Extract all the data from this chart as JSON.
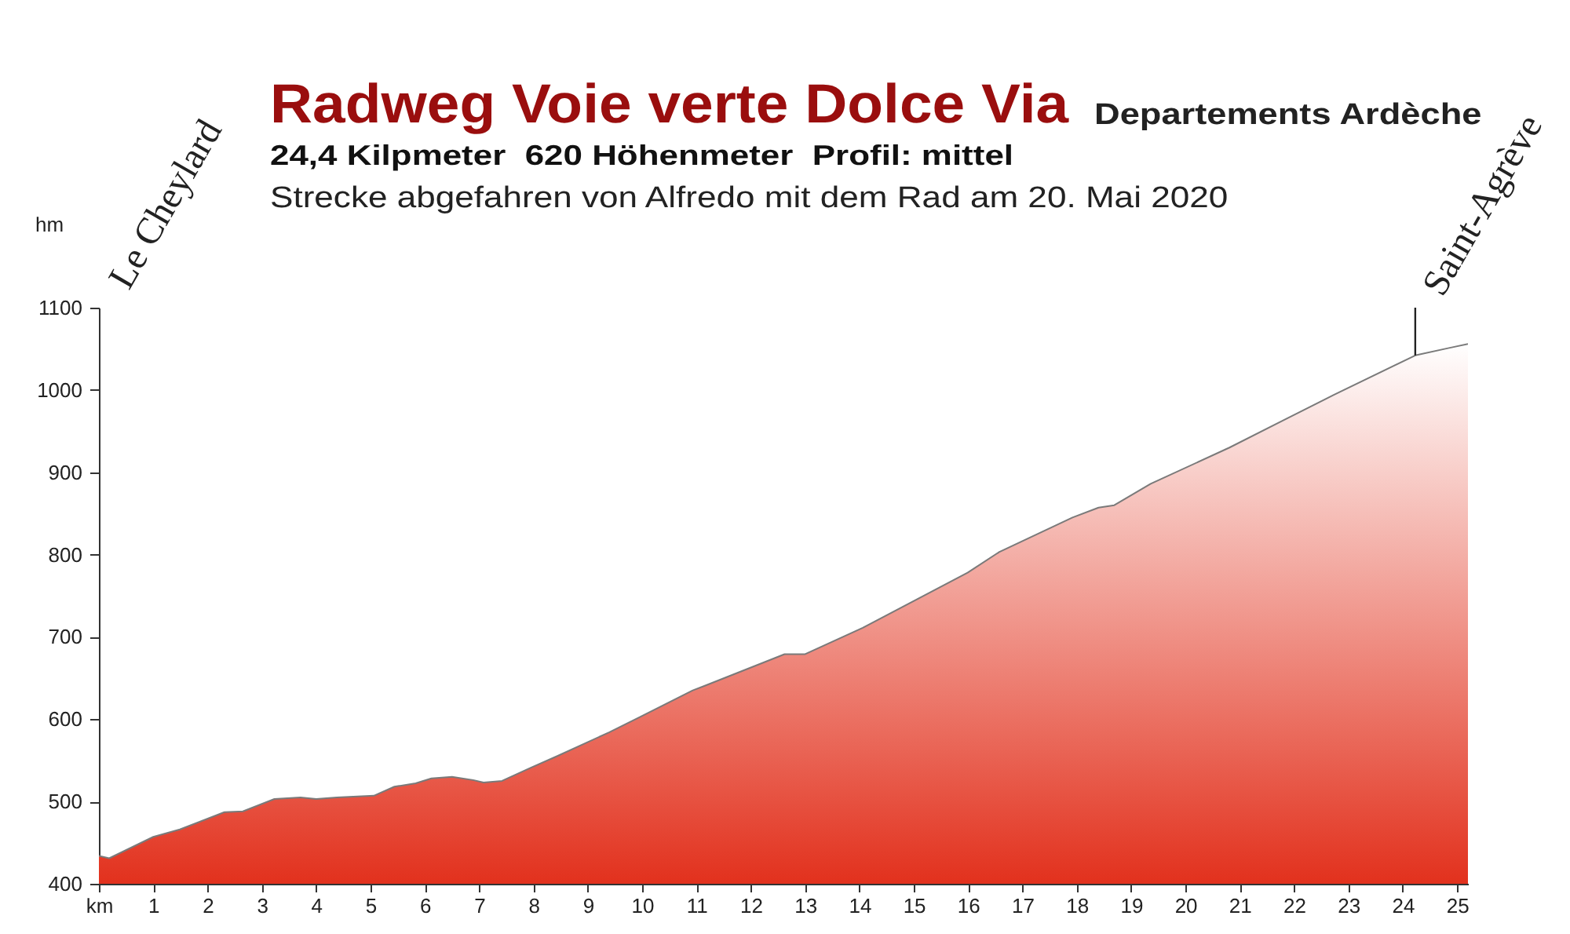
{
  "chart_data": {
    "type": "area",
    "title": "Radweg Voie verte Dolce Via",
    "subtitle": "24,4 Kilpmeter  620 Höhenmeter  Profil: mittel",
    "ylabel": "hm",
    "annotations": [
      "Departements Ardèche",
      "Strecke abgefahren von Alfredo mit dem Rad am 20. Mai 2020",
      "Le Cheylard",
      {
        "text": "Saint-Agrève",
        "x": 24.23,
        "y": 1042
      }
    ],
    "x": [
      0,
      0.19,
      1.0,
      1.49,
      2.31,
      2.65,
      3.23,
      3.71,
      4.0,
      4.38,
      5.06,
      5.44,
      5.83,
      6.12,
      6.5,
      6.89,
      7.08,
      7.42,
      7.95,
      8.43,
      9.39,
      9.97,
      10.93,
      11.17,
      12.62,
      13.0,
      14.06,
      15.99,
      16.57,
      17.92,
      18.4,
      18.69,
      19.36,
      20.81,
      21.77,
      22.73,
      24.23,
      24.85,
      25.2
    ],
    "values": [
      434,
      431,
      457,
      466,
      487,
      488,
      503,
      505,
      503,
      505,
      507,
      518,
      522,
      528,
      530,
      526,
      523,
      525,
      541,
      555,
      584,
      603,
      635,
      641,
      679,
      679,
      711,
      778,
      803,
      845,
      857,
      860,
      886,
      930,
      962,
      994,
      1042,
      1051,
      1056
    ],
    "color": "#e2311d",
    "xlim": [
      0,
      25.2
    ],
    "xticks": [
      {
        "value": 0,
        "label": "km"
      },
      1,
      2,
      3,
      4,
      5,
      6,
      7,
      8,
      9,
      10,
      11,
      12,
      13,
      14,
      15,
      16,
      17,
      18,
      19,
      20,
      21,
      22,
      23,
      24,
      25
    ],
    "ylim": [
      400,
      1100
    ],
    "yticks": [
      400,
      500,
      600,
      700,
      800,
      900,
      1000,
      1100
    ],
    "grid": false
  }
}
